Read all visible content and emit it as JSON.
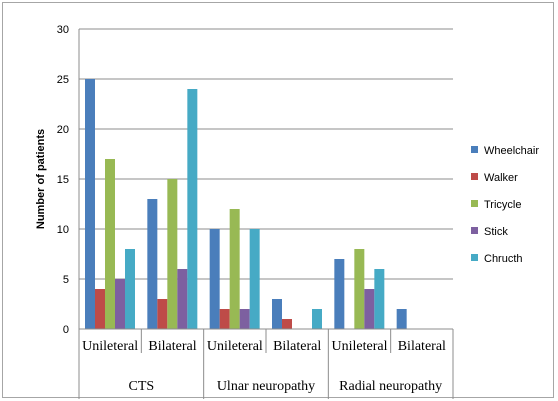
{
  "chart_data": {
    "type": "bar",
    "ylabel": "Number of patients",
    "ylim": [
      0,
      30
    ],
    "yticks": [
      "0",
      "5",
      "10",
      "15",
      "20",
      "25",
      "30"
    ],
    "grid": true,
    "legend_position": "right",
    "categories": [
      "Unileteral",
      "Bilateral",
      "Unileteral",
      "Bilateral",
      "Unileteral",
      "Bilateral"
    ],
    "groups": [
      {
        "label": "CTS",
        "span": 2
      },
      {
        "label": "Ulnar neuropathy",
        "span": 2
      },
      {
        "label": "Radial neuropathy",
        "span": 2
      }
    ],
    "series": [
      {
        "name": "Wheelchair",
        "color": "#4a7ebb",
        "values": [
          25,
          13,
          10,
          3,
          7,
          2
        ]
      },
      {
        "name": "Walker",
        "color": "#be4b48",
        "values": [
          4,
          3,
          2,
          1,
          0,
          0
        ]
      },
      {
        "name": "Tricycle",
        "color": "#98b954",
        "values": [
          17,
          15,
          12,
          0,
          8,
          0
        ]
      },
      {
        "name": "Stick",
        "color": "#7d60a0",
        "values": [
          5,
          6,
          2,
          0,
          4,
          0
        ]
      },
      {
        "name": "Chructh",
        "color": "#46aac5",
        "values": [
          8,
          24,
          10,
          2,
          6,
          0
        ]
      }
    ]
  }
}
